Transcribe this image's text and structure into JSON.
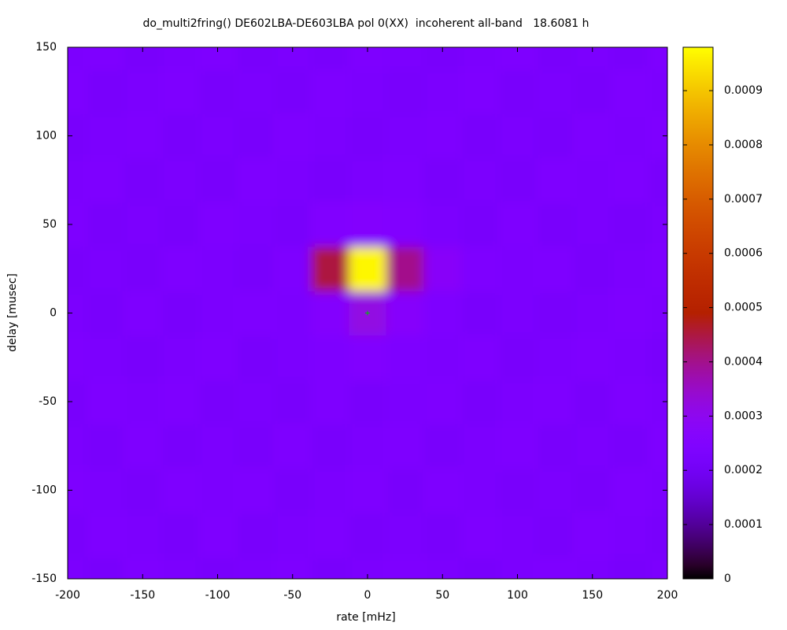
{
  "chart_data": {
    "type": "heatmap",
    "title": "do_multi2fring() DE602LBA-DE603LBA pol 0(XX)  incoherent all-band   18.6081 h",
    "x_label": "rate [mHz]",
    "y_label": "delay [musec]",
    "x": [
      -200,
      -175,
      -150,
      -125,
      -100,
      -75,
      -50,
      -25,
      0,
      25,
      50,
      75,
      100,
      125,
      150,
      175,
      200
    ],
    "y": [
      -150,
      -125,
      -100,
      -75,
      -50,
      -25,
      0,
      25,
      50,
      75,
      100,
      125,
      150
    ],
    "values": [
      [
        0.00023,
        0.00022,
        0.00024,
        0.00023,
        0.00022,
        0.00023,
        0.00024,
        0.00022,
        0.00023,
        0.00024,
        0.00023,
        0.00022,
        0.00023,
        0.00024,
        0.00023,
        0.00022,
        0.00023
      ],
      [
        0.00022,
        0.00024,
        0.00023,
        0.00022,
        0.00024,
        0.00022,
        0.00023,
        0.00024,
        0.00022,
        0.00023,
        0.00022,
        0.00024,
        0.00023,
        0.00022,
        0.00024,
        0.00023,
        0.00022
      ],
      [
        0.00024,
        0.00023,
        0.00022,
        0.00024,
        0.00023,
        0.00024,
        0.00022,
        0.00023,
        0.00024,
        0.00022,
        0.00024,
        0.00023,
        0.00022,
        0.00023,
        0.00022,
        0.00024,
        0.00023
      ],
      [
        0.00023,
        0.00022,
        0.00024,
        0.00022,
        0.00023,
        0.00022,
        0.00024,
        0.00022,
        0.00023,
        0.00024,
        0.00022,
        0.00023,
        0.00024,
        0.00022,
        0.00023,
        0.00022,
        0.00024
      ],
      [
        0.00022,
        0.00024,
        0.00023,
        0.00024,
        0.00022,
        0.00023,
        0.00022,
        0.00024,
        0.00022,
        0.00023,
        0.00024,
        0.00022,
        0.00023,
        0.00024,
        0.00022,
        0.00024,
        0.00023
      ],
      [
        0.00024,
        0.00023,
        0.00022,
        0.00023,
        0.00024,
        0.00022,
        0.00023,
        0.00024,
        0.00025,
        0.00024,
        0.00023,
        0.00024,
        0.00022,
        0.00023,
        0.00024,
        0.00023,
        0.00022
      ],
      [
        0.00023,
        0.00022,
        0.00024,
        0.00022,
        0.00023,
        0.00024,
        0.00023,
        0.00026,
        0.00032,
        0.00027,
        0.00024,
        0.00022,
        0.00023,
        0.00022,
        0.00023,
        0.00024,
        0.00023
      ],
      [
        0.00022,
        0.00023,
        0.00022,
        0.00024,
        0.00023,
        0.00022,
        0.00024,
        0.00045,
        0.00097,
        0.0004,
        0.00028,
        0.00024,
        0.00023,
        0.00024,
        0.00022,
        0.00023,
        0.00024
      ],
      [
        0.00024,
        0.00022,
        0.00023,
        0.00022,
        0.00024,
        0.00023,
        0.00022,
        0.00025,
        0.00026,
        0.00025,
        0.00023,
        0.00022,
        0.00024,
        0.00022,
        0.00023,
        0.00022,
        0.00023
      ],
      [
        0.00023,
        0.00024,
        0.00022,
        0.00023,
        0.00022,
        0.00024,
        0.00023,
        0.00022,
        0.00023,
        0.00024,
        0.00022,
        0.00023,
        0.00022,
        0.00024,
        0.00023,
        0.00024,
        0.00022
      ],
      [
        0.00022,
        0.00023,
        0.00024,
        0.00022,
        0.00023,
        0.00022,
        0.00024,
        0.00023,
        0.00022,
        0.00023,
        0.00024,
        0.00022,
        0.00023,
        0.00022,
        0.00024,
        0.00023,
        0.00024
      ],
      [
        0.00024,
        0.00022,
        0.00023,
        0.00024,
        0.00022,
        0.00023,
        0.00022,
        0.00024,
        0.00023,
        0.00022,
        0.00023,
        0.00024,
        0.00022,
        0.00023,
        0.00022,
        0.00024,
        0.00023
      ],
      [
        0.00023,
        0.00024,
        0.00022,
        0.00023,
        0.00024,
        0.00022,
        0.00023,
        0.00022,
        0.00024,
        0.00023,
        0.00022,
        0.00023,
        0.00024,
        0.00022,
        0.00023,
        0.00022,
        0.00024
      ]
    ],
    "markers": [
      {
        "x": 0,
        "y": 0,
        "color": "#00c000"
      }
    ],
    "xlim": [
      -200,
      200
    ],
    "xticks": [
      -200,
      -150,
      -100,
      -50,
      0,
      50,
      100,
      150,
      200
    ],
    "ylim": [
      -150,
      150
    ],
    "yticks": [
      -150,
      -100,
      -50,
      0,
      50,
      100,
      150
    ],
    "zlim": [
      0,
      0.00098
    ],
    "zticks": [
      0,
      0.0001,
      0.0002,
      0.0003,
      0.0004,
      0.0005,
      0.0006,
      0.0007,
      0.0008,
      0.0009
    ]
  }
}
